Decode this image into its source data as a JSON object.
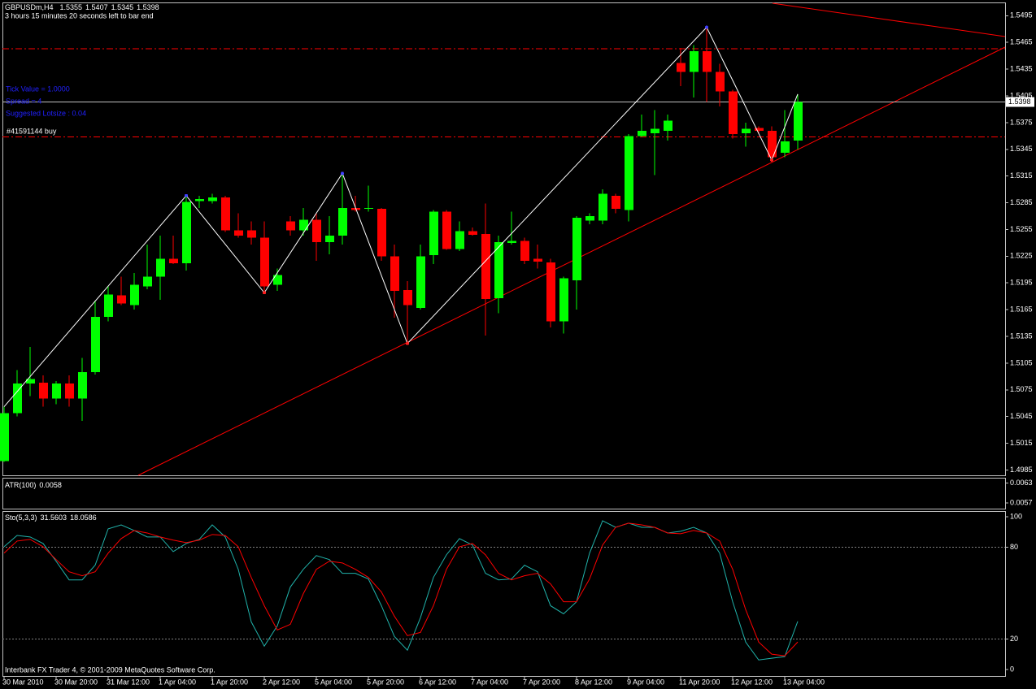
{
  "chart_data": [
    {
      "type": "candlestick",
      "title": "GBPUSDm,H4",
      "subtitle": "3 hours 15 minutes 20 seconds left to bar end",
      "annotations": [
        "Tick Value = 1.0000",
        "Spread = 4",
        "Suggested Lotsize : 0.04"
      ],
      "order_label": "#41591144 buy",
      "footer": "Interbank FX Trader 4, © 2001-2009 MetaQuotes Software Corp.",
      "categories": [
        "30 Mar 2010",
        null,
        null,
        null,
        "30 Mar 20:00",
        null,
        null,
        null,
        "31 Mar 12:00",
        null,
        null,
        null,
        "1 Apr 04:00",
        null,
        null,
        null,
        "1 Apr 20:00",
        null,
        null,
        null,
        "2 Apr 12:00",
        null,
        null,
        null,
        "5 Apr 04:00",
        null,
        null,
        null,
        "5 Apr 20:00",
        null,
        null,
        null,
        "6 Apr 12:00",
        null,
        null,
        null,
        "7 Apr 04:00",
        null,
        null,
        null,
        "7 Apr 20:00",
        null,
        null,
        null,
        "8 Apr 12:00",
        null,
        null,
        null,
        "9 Apr 04:00",
        null,
        null,
        null,
        "11 Apr 20:00",
        null,
        null,
        null,
        "12 Apr 12:00",
        null,
        null,
        null,
        "13 Apr 04:00",
        null
      ],
      "open": [
        1.4995,
        1.5049,
        1.5082,
        1.5083,
        1.5065,
        1.5082,
        1.5065,
        1.5095,
        1.5157,
        1.5181,
        1.517,
        1.5191,
        1.5202,
        1.5222,
        1.5217,
        1.5287,
        1.5287,
        1.5291,
        1.5254,
        1.5254,
        1.5246,
        1.5193,
        1.5264,
        1.5254,
        1.5266,
        1.5241,
        1.5248,
        1.5279,
        1.5278,
        1.5278,
        1.5225,
        1.5187,
        1.5167,
        1.5226,
        1.5275,
        1.5233,
        1.5253,
        1.525,
        1.5178,
        1.524,
        1.5242,
        1.5222,
        1.5218,
        1.5152,
        1.5198,
        1.5265,
        1.5265,
        1.5293,
        1.5277,
        1.536,
        1.5363,
        1.5366,
        1.5442,
        1.5432,
        1.5455,
        1.5432,
        1.541,
        1.5363,
        1.5369,
        1.5366,
        1.5341,
        1.5355
      ],
      "high": [
        1.5056,
        1.5097,
        1.5123,
        1.5091,
        1.5085,
        1.5091,
        1.5111,
        1.5175,
        1.5191,
        1.5202,
        1.5206,
        1.5238,
        1.5248,
        1.5248,
        1.5293,
        1.5293,
        1.5295,
        1.5293,
        1.5273,
        1.5264,
        1.5264,
        1.5211,
        1.527,
        1.5279,
        1.5273,
        1.527,
        1.5318,
        1.5293,
        1.5304,
        1.5279,
        1.5238,
        1.5197,
        1.5238,
        1.5277,
        1.5277,
        1.5264,
        1.5257,
        1.5284,
        1.5248,
        1.5275,
        1.5246,
        1.5238,
        1.5222,
        1.5202,
        1.527,
        1.5273,
        1.53,
        1.5295,
        1.5362,
        1.5384,
        1.5389,
        1.5384,
        1.5459,
        1.5462,
        1.5482,
        1.5441,
        1.5412,
        1.5375,
        1.5371,
        1.5371,
        1.5389,
        1.5407
      ],
      "low": [
        1.4994,
        1.5045,
        1.5068,
        1.5056,
        1.5059,
        1.5056,
        1.504,
        1.5092,
        1.5152,
        1.517,
        1.5165,
        1.5188,
        1.5176,
        1.5216,
        1.5209,
        1.5279,
        1.5284,
        1.5252,
        1.5246,
        1.5238,
        1.5184,
        1.5186,
        1.5248,
        1.5248,
        1.522,
        1.5227,
        1.5238,
        1.5275,
        1.5275,
        1.522,
        1.5156,
        1.5127,
        1.5165,
        1.5216,
        1.5232,
        1.5231,
        1.5248,
        1.5136,
        1.5161,
        1.5238,
        1.5216,
        1.5211,
        1.5145,
        1.5138,
        1.5165,
        1.5261,
        1.5261,
        1.5273,
        1.5264,
        1.5359,
        1.5316,
        1.5355,
        1.5416,
        1.5403,
        1.5398,
        1.5393,
        1.5357,
        1.5348,
        1.5362,
        1.5333,
        1.5336,
        1.5345
      ],
      "close": [
        1.5049,
        1.5082,
        1.5087,
        1.5065,
        1.5082,
        1.5065,
        1.5095,
        1.5157,
        1.5182,
        1.5172,
        1.5193,
        1.5202,
        1.5222,
        1.5217,
        1.5286,
        1.5289,
        1.5291,
        1.5254,
        1.5248,
        1.5246,
        1.5191,
        1.5204,
        1.5254,
        1.5266,
        1.5241,
        1.5248,
        1.5279,
        1.5277,
        1.5279,
        1.5225,
        1.5186,
        1.517,
        1.5225,
        1.5275,
        1.5233,
        1.5253,
        1.5249,
        1.5177,
        1.5241,
        1.5242,
        1.522,
        1.5219,
        1.5152,
        1.52,
        1.5268,
        1.527,
        1.5295,
        1.5278,
        1.536,
        1.5366,
        1.5368,
        1.5377,
        1.5432,
        1.5455,
        1.5432,
        1.541,
        1.5362,
        1.5368,
        1.5366,
        1.5336,
        1.5354,
        1.5398
      ],
      "up_color": "#00ff00",
      "down_color": "#ff0000",
      "ylim": [
        1.4979,
        1.5509
      ],
      "yticks": [
        1.4985,
        1.5015,
        1.5045,
        1.5075,
        1.5105,
        1.5135,
        1.5165,
        1.5195,
        1.5225,
        1.5255,
        1.5285,
        1.5315,
        1.5345,
        1.5375,
        1.5405,
        1.5435,
        1.5465,
        1.5495
      ],
      "levels": [
        1.5458,
        1.5359
      ],
      "zigzag": {
        "x": [
          0,
          14,
          20,
          26,
          31,
          54,
          59,
          61
        ],
        "values": [
          1.5056,
          1.5293,
          1.5184,
          1.5318,
          1.5127,
          1.5482,
          1.5333,
          1.5407
        ]
      }
    },
    {
      "type": "indicator",
      "title": "ATR(100)",
      "last_value": 0.0058,
      "ylim": [
        0.00553,
        0.00644
      ],
      "yticks": [
        0.0057,
        0.0063
      ]
    },
    {
      "type": "line",
      "title": "Sto(5,3,3)",
      "ylim": [
        -4.2,
        103.2
      ],
      "yticks": [
        0,
        20,
        80,
        100
      ],
      "levels": [
        20,
        80
      ],
      "series": [
        {
          "color": "#20b2aa",
          "values": [
            80.4,
            87.8,
            86.8,
            82.5,
            70.9,
            58.7,
            58.7,
            68.3,
            92.1,
            94.7,
            91.0,
            86.8,
            86.8,
            77.2,
            82.5,
            85.2,
            94.7,
            86.8,
            65.6,
            31.2,
            15.3,
            28.6,
            54.0,
            65.6,
            74.6,
            72.0,
            63.0,
            63.0,
            59.3,
            41.8,
            21.7,
            12.7,
            33.9,
            60.3,
            75.1,
            85.7,
            81.5,
            63.0,
            58.7,
            59.3,
            68.3,
            64.0,
            41.8,
            36.5,
            44.4,
            76.2,
            97.4,
            93.1,
            95.8,
            93.1,
            93.1,
            89.4,
            90.5,
            93.1,
            89.4,
            76.2,
            44.4,
            18.0,
            6.3,
            7.4,
            8.5,
            31.5603
          ]
        },
        {
          "color": "#ff0000",
          "values": [
            76.2,
            84.1,
            85.2,
            80.4,
            72.0,
            64.0,
            61.4,
            64.0,
            76.2,
            85.7,
            91.0,
            89.4,
            86.8,
            84.7,
            83.1,
            84.7,
            88.4,
            87.8,
            80.4,
            60.3,
            41.8,
            25.9,
            29.6,
            49.7,
            65.6,
            70.9,
            69.8,
            65.6,
            60.3,
            50.8,
            34.9,
            22.2,
            24.3,
            41.8,
            65.6,
            80.4,
            82.5,
            75.1,
            63.0,
            58.7,
            61.4,
            63.0,
            56.1,
            44.4,
            44.4,
            59.3,
            81.5,
            93.1,
            95.8,
            94.7,
            93.1,
            89.4,
            88.9,
            91.0,
            89.4,
            84.1,
            65.6,
            39.2,
            18.0,
            10.1,
            9.0,
            18.0586
          ]
        }
      ]
    }
  ]
}
